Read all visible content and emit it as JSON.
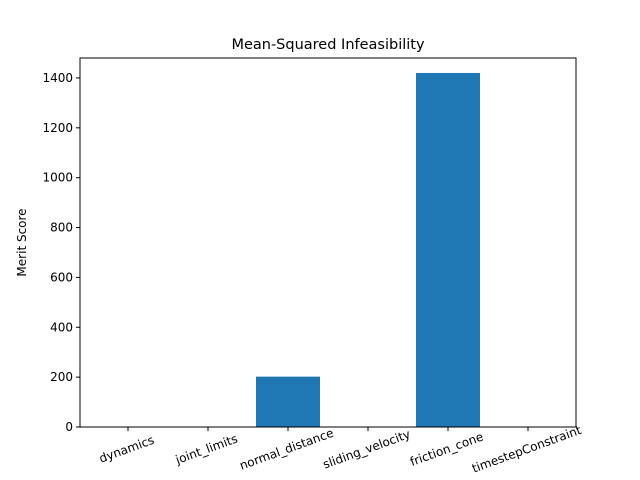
{
  "chart_data": {
    "type": "bar",
    "title": "Mean-Squared Infeasibility",
    "xlabel": "",
    "ylabel": "Merit Score",
    "categories": [
      "dynamics",
      "joint_limits",
      "normal_distance",
      "sliding_velocity",
      "friction_cone",
      "timestepConstraint"
    ],
    "values": [
      0,
      0,
      202,
      0,
      1420,
      0
    ],
    "ylim": [
      0,
      1480
    ],
    "yticks": [
      0,
      200,
      400,
      600,
      800,
      1000,
      1200,
      1400
    ],
    "xtick_rotation": -20,
    "grid": false,
    "legend": "none",
    "bar_color": "#1f77b4"
  }
}
